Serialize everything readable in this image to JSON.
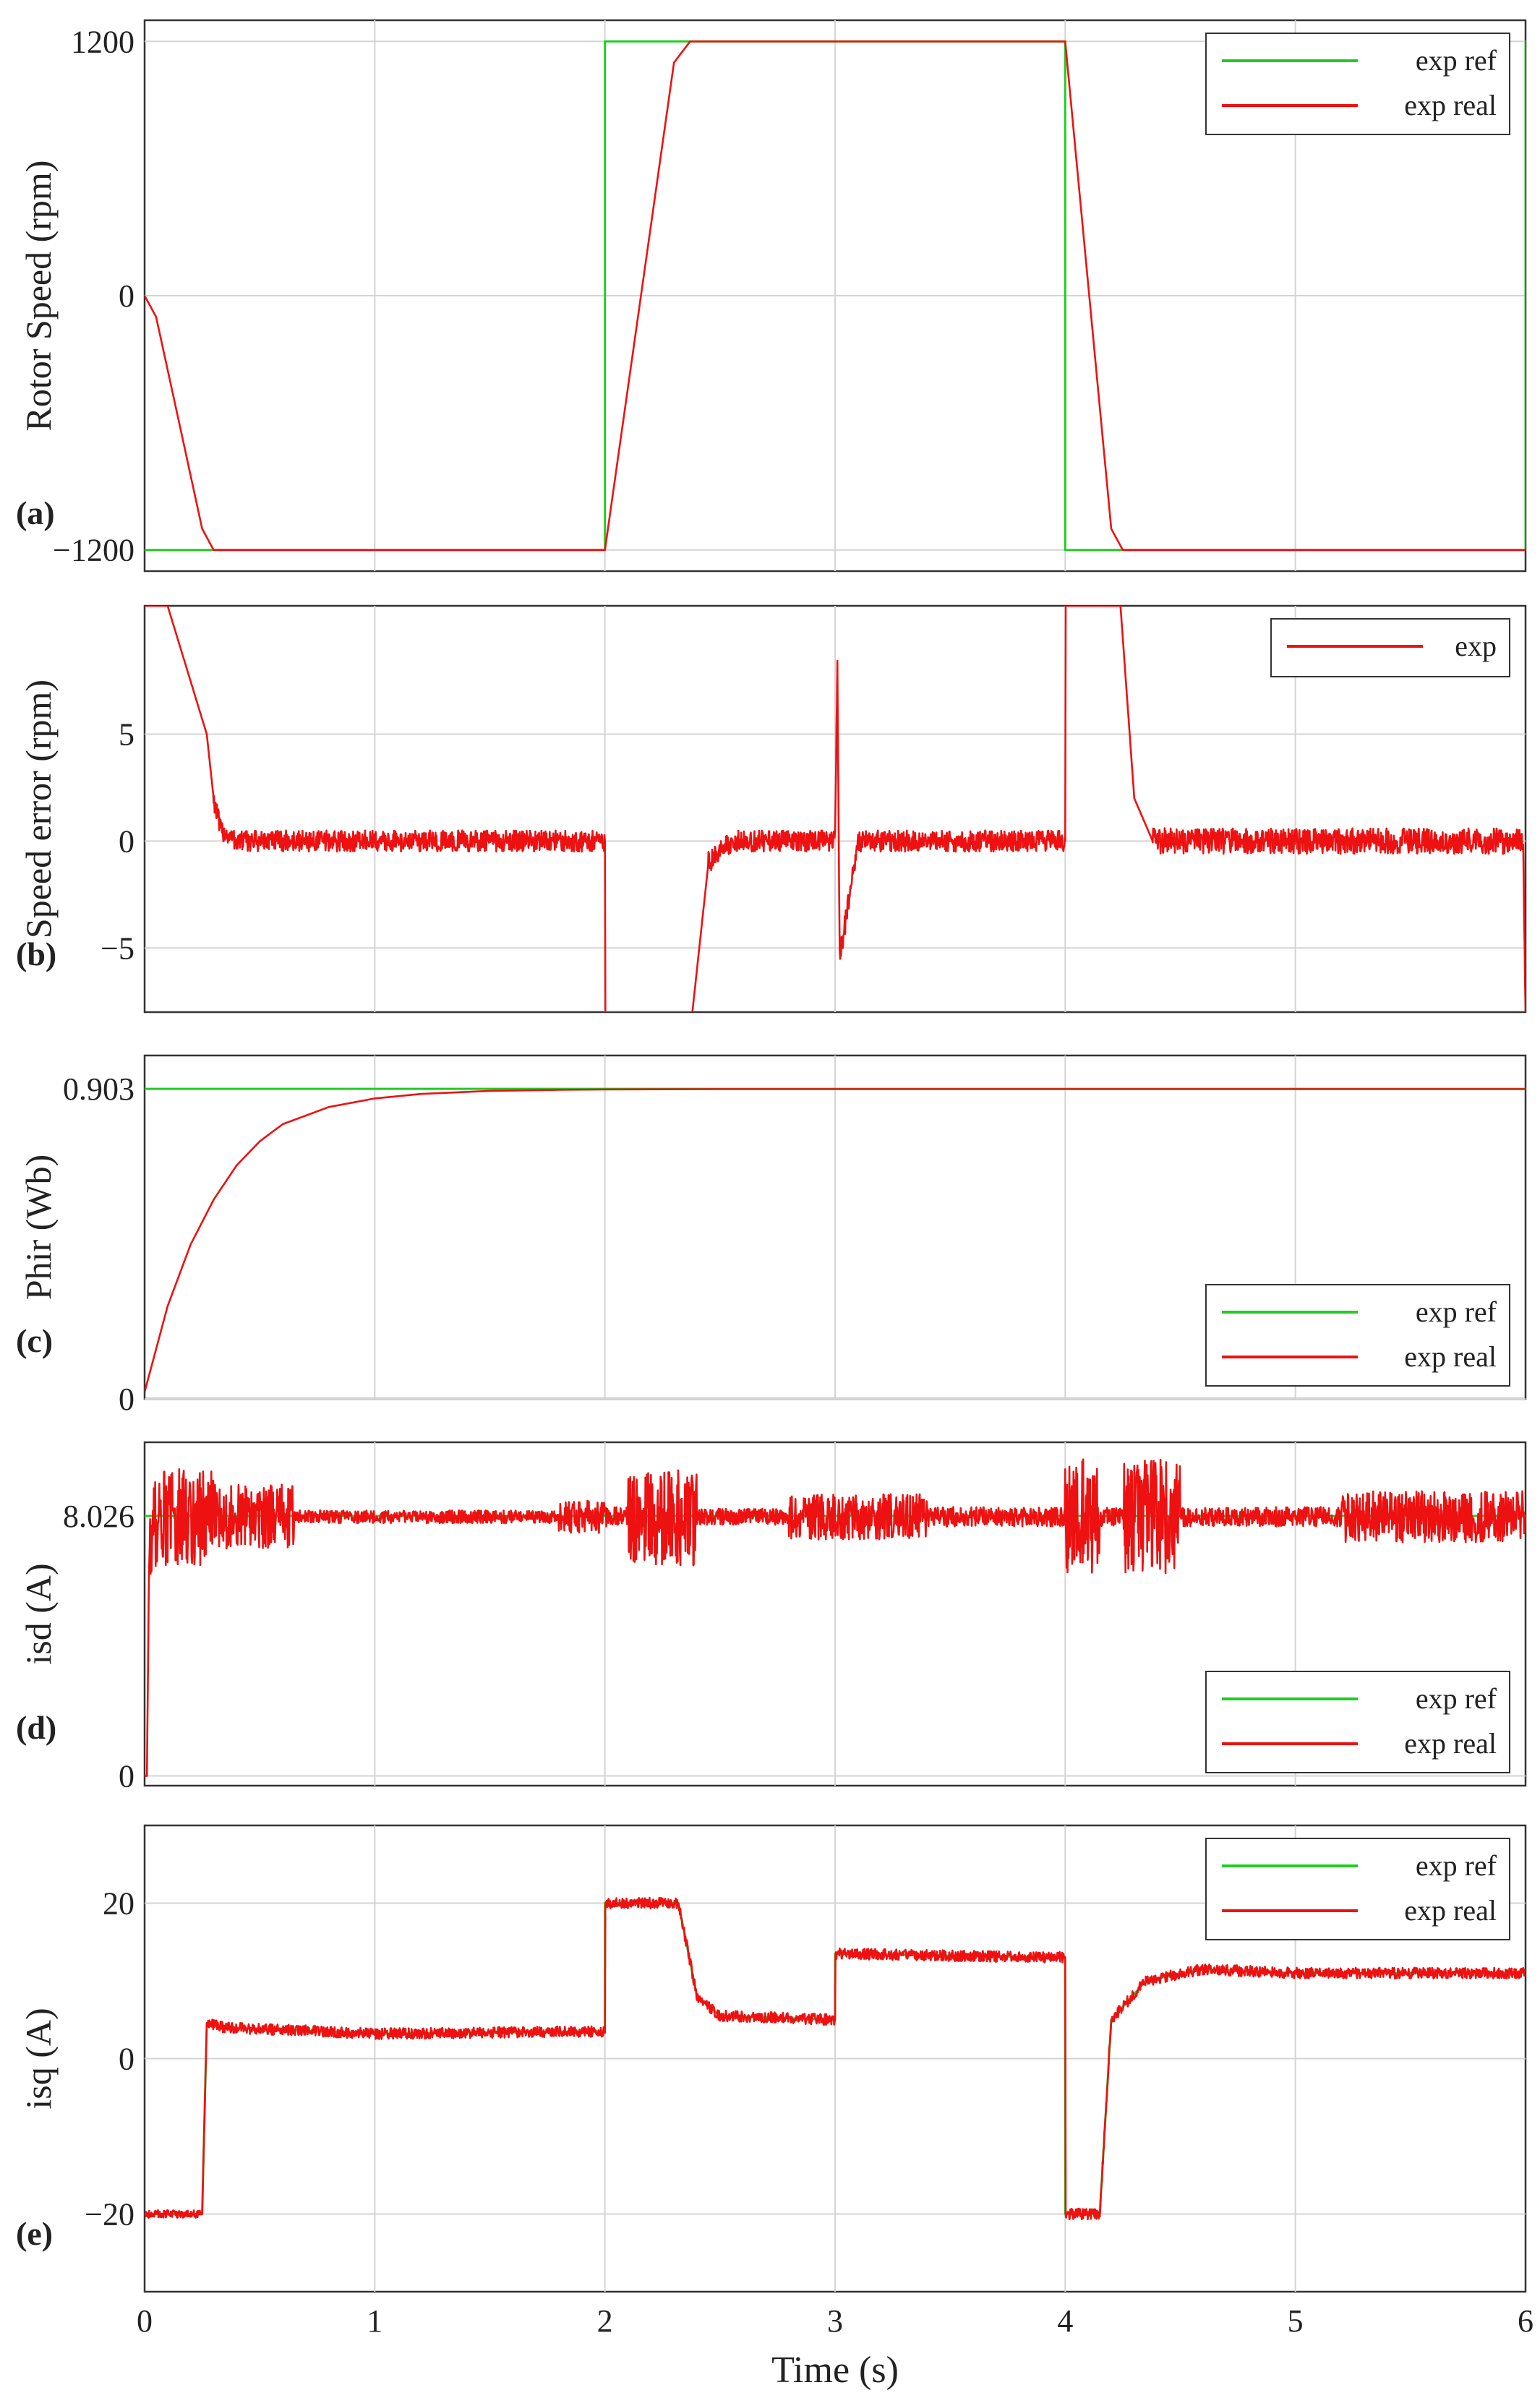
{
  "chart_data": [
    {
      "id": "a",
      "type": "line",
      "panel_label": "(a)",
      "ylabel": "Rotor Speed (rpm)",
      "xlim": [
        0,
        6
      ],
      "ylim": [
        -1300,
        1300
      ],
      "yticks": [
        {
          "v": 1200,
          "label": "1200"
        },
        {
          "v": 0,
          "label": "0"
        },
        {
          "v": -1200,
          "label": "−1200"
        }
      ],
      "legend": {
        "position": "top-right",
        "entries": [
          "exp ref",
          "exp real"
        ]
      },
      "series": [
        {
          "name": "exp ref",
          "color": "#22cc22",
          "x": [
            0,
            2.0,
            2.0,
            4.0,
            4.0,
            6.0,
            6.0
          ],
          "y": [
            -1200,
            -1200,
            1200,
            1200,
            -1200,
            -1200,
            1200
          ]
        },
        {
          "name": "exp real",
          "color": "#ee1111",
          "x": [
            0,
            0.05,
            0.15,
            0.25,
            0.3,
            2.0,
            2.3,
            2.37,
            4.0,
            4.2,
            4.25,
            6.0
          ],
          "y": [
            0,
            -100,
            -600,
            -1100,
            -1200,
            -1200,
            1100,
            1200,
            1200,
            -1100,
            -1200,
            -1200
          ]
        }
      ]
    },
    {
      "id": "b",
      "type": "line",
      "panel_label": "(b)",
      "ylabel": "Speed error (rpm)",
      "xlim": [
        0,
        6
      ],
      "ylim": [
        -8,
        11
      ],
      "yticks": [
        {
          "v": 5,
          "label": "5"
        },
        {
          "v": 0,
          "label": "0"
        },
        {
          "v": -5,
          "label": "−5"
        }
      ],
      "legend": {
        "position": "top-right",
        "entries": [
          "exp"
        ]
      },
      "series": [
        {
          "name": "exp",
          "color": "#ee1111",
          "x": [
            0.1,
            0.27,
            0.3,
            0.33,
            0.4,
            2.0,
            2.0,
            2.38,
            2.45,
            2.55,
            3.0,
            3.01,
            3.02,
            3.1,
            4.0,
            4.0,
            4.24,
            4.3,
            4.38,
            5.99,
            6.0
          ],
          "y": [
            11,
            5,
            2,
            0.5,
            0,
            0,
            -8,
            -8,
            -1,
            0,
            0,
            8,
            -5.5,
            0,
            0,
            11,
            11,
            2,
            0,
            0,
            -8
          ]
        }
      ]
    },
    {
      "id": "c",
      "type": "line",
      "panel_label": "(c)",
      "ylabel": "Phir (Wb)",
      "xlim": [
        0,
        6
      ],
      "ylim": [
        0,
        1.0
      ],
      "yticks": [
        {
          "v": 0.903,
          "label": "0.903"
        },
        {
          "v": 0,
          "label": "0"
        }
      ],
      "legend": {
        "position": "bottom-right",
        "entries": [
          "exp ref",
          "exp real"
        ]
      },
      "series": [
        {
          "name": "exp ref",
          "color": "#22cc22",
          "x": [
            0,
            6
          ],
          "y": [
            0.903,
            0.903
          ]
        },
        {
          "name": "exp real",
          "color": "#ee1111",
          "x": [
            0,
            0.1,
            0.2,
            0.3,
            0.4,
            0.5,
            0.6,
            0.8,
            1.0,
            1.2,
            1.5,
            1.8,
            2.0,
            2.5,
            3.0,
            4.0,
            5.0,
            6.0
          ],
          "y": [
            0.02,
            0.27,
            0.45,
            0.58,
            0.68,
            0.75,
            0.8,
            0.85,
            0.875,
            0.888,
            0.897,
            0.9,
            0.901,
            0.902,
            0.902,
            0.902,
            0.902,
            0.902
          ]
        }
      ]
    },
    {
      "id": "d",
      "type": "line",
      "panel_label": "(d)",
      "ylabel": "isd (A)",
      "xlim": [
        0,
        6
      ],
      "ylim": [
        -0.3,
        10.3
      ],
      "yticks": [
        {
          "v": 8.026,
          "label": "8.026"
        },
        {
          "v": 0,
          "label": "0"
        }
      ],
      "legend": {
        "position": "bottom-right",
        "entries": [
          "exp ref",
          "exp real"
        ]
      },
      "series": [
        {
          "name": "exp ref",
          "color": "#22cc22",
          "x": [
            0,
            6
          ],
          "y": [
            8.026,
            8.026
          ]
        },
        {
          "name": "exp real",
          "color": "#ee1111",
          "x": [
            0,
            0.01,
            0.02,
            0.05,
            0.3,
            0.65,
            0.7,
            1.8,
            2.0,
            2.1,
            2.2,
            2.4,
            2.5,
            3.0,
            3.5,
            4.0,
            4.1,
            4.3,
            4.5,
            5.0,
            5.5,
            6.0
          ],
          "y": [
            0,
            0,
            7.0,
            8.0,
            8.0,
            8.0,
            8.0,
            8.0,
            8.0,
            8.0,
            8.0,
            8.0,
            8.0,
            8.0,
            8.0,
            8.0,
            8.0,
            8.0,
            8.0,
            8.0,
            8.0,
            8.0
          ]
        }
      ]
    },
    {
      "id": "e",
      "type": "line",
      "panel_label": "(e)",
      "ylabel": "isq (A)",
      "xlabel": "Time (s)",
      "xlim": [
        0,
        6
      ],
      "ylim": [
        -30,
        30
      ],
      "xticks": [
        0,
        1,
        2,
        3,
        4,
        5,
        6
      ],
      "yticks": [
        {
          "v": 20,
          "label": "20"
        },
        {
          "v": 0,
          "label": "0"
        },
        {
          "v": -20,
          "label": "−20"
        }
      ],
      "legend": {
        "position": "top-right",
        "entries": [
          "exp ref",
          "exp real"
        ]
      },
      "series": [
        {
          "name": "exp ref",
          "color": "#22cc22",
          "x": [
            0,
            0.25,
            0.27,
            0.35,
            1.0,
            2.0,
            2.0,
            2.32,
            2.4,
            2.5,
            3.0,
            3.0,
            4.0,
            4.0,
            4.15,
            4.2,
            4.35,
            4.6,
            5.0,
            6.0
          ],
          "y": [
            -20,
            -20,
            4.5,
            4,
            3.2,
            3.5,
            20,
            20,
            8,
            5.5,
            5,
            13.5,
            13,
            -20,
            -20,
            5,
            10,
            11.5,
            11,
            11
          ]
        },
        {
          "name": "exp real",
          "color": "#ee1111",
          "x": [
            0,
            0.25,
            0.27,
            0.35,
            1.0,
            2.0,
            2.0,
            2.32,
            2.4,
            2.5,
            3.0,
            3.0,
            4.0,
            4.0,
            4.15,
            4.2,
            4.35,
            4.6,
            5.0,
            6.0
          ],
          "y": [
            -20,
            -20,
            4.5,
            4,
            3.2,
            3.5,
            20,
            20,
            8,
            5.5,
            5,
            13.5,
            13,
            -20,
            -20,
            5,
            10,
            11.5,
            11,
            11
          ]
        }
      ]
    }
  ],
  "noise": {
    "b": [
      [
        0.3,
        2.0,
        0.5
      ],
      [
        2.45,
        4.0,
        0.5
      ],
      [
        4.38,
        6.0,
        0.6
      ]
    ],
    "d": [
      [
        0.02,
        0.3,
        1.5
      ],
      [
        0.3,
        0.65,
        1.0
      ],
      [
        0.65,
        1.8,
        0.2
      ],
      [
        1.8,
        2.0,
        0.5
      ],
      [
        2.0,
        2.1,
        0.3
      ],
      [
        2.1,
        2.4,
        1.5
      ],
      [
        2.4,
        2.8,
        0.25
      ],
      [
        2.8,
        3.4,
        0.7
      ],
      [
        3.4,
        4.0,
        0.3
      ],
      [
        4.0,
        4.15,
        1.8
      ],
      [
        4.15,
        4.25,
        0.3
      ],
      [
        4.25,
        4.5,
        1.8
      ],
      [
        4.5,
        5.2,
        0.3
      ],
      [
        5.2,
        6.0,
        0.8
      ]
    ],
    "e": [
      [
        0,
        0.25,
        0.5
      ],
      [
        0.27,
        6.0,
        0.7
      ]
    ]
  }
}
